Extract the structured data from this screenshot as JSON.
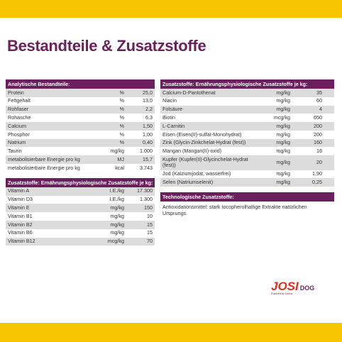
{
  "header": {
    "title": "Bestandteile & Zusatzstoffe"
  },
  "left_tables": [
    {
      "heading": "Analytische Bestandteile:",
      "rows": [
        [
          "Protein",
          "%",
          "25,0"
        ],
        [
          "Fettgehalt",
          "%",
          "13,0"
        ],
        [
          "Rohfaser",
          "%",
          "2,2"
        ],
        [
          "Rohasche",
          "%",
          "6,3"
        ],
        [
          "Calcium",
          "%",
          "1,50"
        ],
        [
          "Phosphor",
          "%",
          "1,00"
        ],
        [
          "Natrium",
          "%",
          "0,40"
        ],
        [
          "Taurin",
          "mg/kg",
          "1.000"
        ],
        [
          "metabolisierbare Energie pro kg",
          "MJ",
          "15,7"
        ],
        [
          "metabolisierbare Energie pro kg",
          "kcal",
          "3.743"
        ]
      ]
    },
    {
      "heading": "Zusatzstoffe: Ernährungsphysiologische Zusatzstoffe je kg:",
      "rows": [
        [
          "Vitamin A",
          "I.E./kg",
          "17.300"
        ],
        [
          "Vitamin D3",
          "I.E./kg",
          "1.300"
        ],
        [
          "Vitamin E",
          "mg/kg",
          "150"
        ],
        [
          "Vitamin B1",
          "mg/kg",
          "10"
        ],
        [
          "Vitamin B2",
          "mg/kg",
          "15"
        ],
        [
          "Vitamin B6",
          "mg/kg",
          "15"
        ],
        [
          "Vitamin B12",
          "mcg/kg",
          "70"
        ]
      ]
    }
  ],
  "right_tables": [
    {
      "heading": "Zusatzstoffe: Ernährungsphysiologische Zusatzstoffe je kg:",
      "rows": [
        [
          "Calcium-D-Pantothenat",
          "mg/kg",
          "35"
        ],
        [
          "Niacin",
          "mg/kg",
          "60"
        ],
        [
          "Folsäure",
          "mg/kg",
          "4"
        ],
        [
          "Biotin",
          "mcg/kg",
          "650"
        ],
        [
          "L-Carnitin",
          "mg/kg",
          "200"
        ],
        [
          "Eisen (Eisen(II)-sulfat-Monohydrat)",
          "mg/kg",
          "200"
        ],
        [
          "Zink (Glycin-Zinkchelat-Hydrat (fest))",
          "mg/kg",
          "160"
        ],
        [
          "Mangan (Mangan(II)-oxid)",
          "mg/kg",
          "16"
        ],
        [
          "Kupfer (Kupfer(II)-Glycinchelat-Hydrat (fest))",
          "mg/kg",
          "20"
        ],
        [
          "Jod (Kalziumjodat, wasserfrei)",
          "mg/kg",
          "1,90"
        ],
        [
          "Selen (Natriumselenit)",
          "mg/kg",
          "0,25"
        ]
      ]
    }
  ],
  "technological": {
    "heading": "Technologische Zusatzstoffe:",
    "text": "Antioxidationsmittel: stark tocopherolhaltige Extrakte natürlichen Ursprungs."
  },
  "logo": {
    "brand": "JOSI",
    "sub": "DOG",
    "tagline": "Powered by Josera"
  }
}
